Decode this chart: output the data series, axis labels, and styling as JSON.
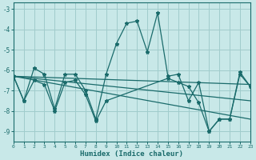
{
  "xlabel": "Humidex (Indice chaleur)",
  "xlim": [
    0,
    23
  ],
  "ylim": [
    -9.5,
    -2.7
  ],
  "yticks": [
    -9,
    -8,
    -7,
    -6,
    -5,
    -4,
    -3
  ],
  "xticks": [
    0,
    1,
    2,
    3,
    4,
    5,
    6,
    7,
    8,
    9,
    10,
    11,
    12,
    13,
    14,
    15,
    16,
    17,
    18,
    19,
    20,
    21,
    22,
    23
  ],
  "bg": "#c8e8e8",
  "grid_color": "#a0cccc",
  "lc": "#1a6b6b",
  "series": [
    {
      "x": [
        0,
        1,
        2,
        3,
        4,
        5,
        6,
        7,
        8,
        9,
        10,
        11,
        12,
        13,
        14,
        15,
        16,
        17,
        18,
        19,
        20,
        21,
        22,
        23
      ],
      "y": [
        -6.3,
        -7.5,
        -5.9,
        -6.2,
        -7.9,
        -6.2,
        -6.2,
        -7.0,
        -8.4,
        -6.2,
        -4.7,
        -3.7,
        -3.6,
        -5.1,
        -3.2,
        -6.3,
        -6.2,
        -7.5,
        -6.6,
        -9.0,
        -8.4,
        -8.4,
        -6.1,
        -6.8
      ],
      "marker": true
    },
    {
      "x": [
        0,
        1,
        2,
        3,
        4,
        5,
        6,
        7,
        8,
        9,
        15,
        16,
        17,
        18,
        19,
        20,
        21,
        22,
        23
      ],
      "y": [
        -6.3,
        -7.5,
        -6.5,
        -6.7,
        -8.0,
        -6.6,
        -6.5,
        -7.2,
        -8.5,
        -7.5,
        -6.4,
        -6.6,
        -6.8,
        -7.6,
        -9.0,
        -8.4,
        -8.4,
        -6.2,
        -6.8
      ],
      "marker": true
    },
    {
      "x": [
        0,
        23
      ],
      "y": [
        -6.3,
        -6.7
      ],
      "marker": false
    },
    {
      "x": [
        0,
        23
      ],
      "y": [
        -6.3,
        -7.5
      ],
      "marker": false
    },
    {
      "x": [
        0,
        23
      ],
      "y": [
        -6.3,
        -8.4
      ],
      "marker": false
    }
  ]
}
